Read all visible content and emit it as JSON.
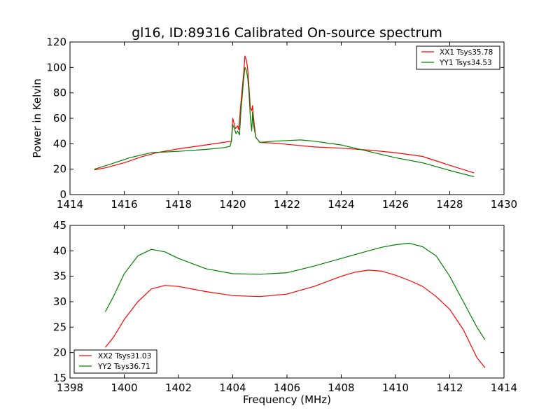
{
  "chart_data": [
    {
      "type": "line",
      "title": "gl16, ID:89316 Calibrated On-source spectrum",
      "xlabel": "",
      "ylabel": "Power in Kelvin",
      "xlim": [
        1414,
        1430
      ],
      "ylim": [
        0,
        120
      ],
      "xticks": [
        1414,
        1416,
        1418,
        1420,
        1422,
        1424,
        1426,
        1428,
        1430
      ],
      "yticks": [
        0,
        20,
        40,
        60,
        80,
        100,
        120
      ],
      "grid": false,
      "legend_position": "top-right",
      "series": [
        {
          "name": "XX1 Tsys35.78",
          "color": "#ff0000",
          "points": [
            [
              1414.9,
              19.5
            ],
            [
              1415.3,
              21
            ],
            [
              1416,
              25
            ],
            [
              1416.6,
              29.5
            ],
            [
              1417.2,
              33
            ],
            [
              1418,
              36
            ],
            [
              1419,
              39
            ],
            [
              1419.8,
              41.5
            ],
            [
              1419.95,
              42
            ],
            [
              1420.0,
              60
            ],
            [
              1420.06,
              55
            ],
            [
              1420.1,
              52
            ],
            [
              1420.18,
              54
            ],
            [
              1420.22,
              51
            ],
            [
              1420.3,
              72
            ],
            [
              1420.4,
              95
            ],
            [
              1420.45,
              109
            ],
            [
              1420.5,
              106
            ],
            [
              1420.55,
              99
            ],
            [
              1420.6,
              85
            ],
            [
              1420.65,
              68
            ],
            [
              1420.7,
              66
            ],
            [
              1420.73,
              70
            ],
            [
              1420.76,
              62
            ],
            [
              1420.85,
              45
            ],
            [
              1421.0,
              41
            ],
            [
              1421.5,
              40.5
            ],
            [
              1422,
              39.5
            ],
            [
              1423,
              37.5
            ],
            [
              1424,
              36.5
            ],
            [
              1425,
              35
            ],
            [
              1426,
              33
            ],
            [
              1427,
              30
            ],
            [
              1428,
              23
            ],
            [
              1428.9,
              17
            ]
          ]
        },
        {
          "name": "YY1 Tsys34.53",
          "color": "#008000",
          "points": [
            [
              1414.9,
              20
            ],
            [
              1415.5,
              24
            ],
            [
              1416.2,
              29
            ],
            [
              1417,
              33
            ],
            [
              1418,
              34
            ],
            [
              1419,
              35.5
            ],
            [
              1419.7,
              37
            ],
            [
              1419.9,
              38
            ],
            [
              1419.95,
              42
            ],
            [
              1420.0,
              55
            ],
            [
              1420.06,
              52
            ],
            [
              1420.12,
              48
            ],
            [
              1420.18,
              50
            ],
            [
              1420.25,
              47
            ],
            [
              1420.3,
              65
            ],
            [
              1420.4,
              90
            ],
            [
              1420.45,
              100
            ],
            [
              1420.5,
              98
            ],
            [
              1420.55,
              92
            ],
            [
              1420.6,
              80
            ],
            [
              1420.65,
              60
            ],
            [
              1420.7,
              50
            ],
            [
              1420.73,
              65
            ],
            [
              1420.76,
              56
            ],
            [
              1420.85,
              45
            ],
            [
              1421.0,
              41
            ],
            [
              1421.5,
              42
            ],
            [
              1422,
              42.5
            ],
            [
              1422.5,
              43
            ],
            [
              1423,
              42
            ],
            [
              1424,
              39
            ],
            [
              1425,
              34
            ],
            [
              1426,
              29
            ],
            [
              1427,
              25
            ],
            [
              1428,
              19
            ],
            [
              1428.9,
              14
            ]
          ]
        }
      ]
    },
    {
      "type": "line",
      "title": "",
      "xlabel": "Frequency (MHz)",
      "ylabel": "",
      "xlim": [
        1398,
        1414
      ],
      "ylim": [
        15,
        45
      ],
      "xticks": [
        1398,
        1400,
        1402,
        1404,
        1406,
        1408,
        1410,
        1412,
        1414
      ],
      "yticks": [
        15,
        20,
        25,
        30,
        35,
        40,
        45
      ],
      "grid": false,
      "legend_position": "bottom-left",
      "series": [
        {
          "name": "XX2 Tsys31.03",
          "color": "#ff0000",
          "points": [
            [
              1399.3,
              21
            ],
            [
              1399.6,
              23
            ],
            [
              1400,
              26.5
            ],
            [
              1400.5,
              30
            ],
            [
              1401,
              32.5
            ],
            [
              1401.5,
              33.2
            ],
            [
              1402,
              33
            ],
            [
              1403,
              32
            ],
            [
              1404,
              31.2
            ],
            [
              1405,
              31
            ],
            [
              1406,
              31.5
            ],
            [
              1407,
              33
            ],
            [
              1408,
              35
            ],
            [
              1408.5,
              35.8
            ],
            [
              1409,
              36.2
            ],
            [
              1409.5,
              36
            ],
            [
              1410,
              35.2
            ],
            [
              1410.5,
              34.2
            ],
            [
              1411,
              33
            ],
            [
              1411.5,
              31
            ],
            [
              1412,
              28.5
            ],
            [
              1412.5,
              24.5
            ],
            [
              1413,
              19
            ],
            [
              1413.3,
              17
            ]
          ]
        },
        {
          "name": "YY2 Tsys36.71",
          "color": "#008000",
          "points": [
            [
              1399.3,
              28
            ],
            [
              1399.6,
              31
            ],
            [
              1400,
              35.5
            ],
            [
              1400.5,
              39
            ],
            [
              1401,
              40.3
            ],
            [
              1401.5,
              39.8
            ],
            [
              1402,
              38.5
            ],
            [
              1403,
              36.5
            ],
            [
              1404,
              35.5
            ],
            [
              1405,
              35.4
            ],
            [
              1406,
              35.7
            ],
            [
              1407,
              37
            ],
            [
              1408,
              38.5
            ],
            [
              1409,
              40
            ],
            [
              1409.5,
              40.7
            ],
            [
              1410,
              41.2
            ],
            [
              1410.5,
              41.5
            ],
            [
              1411,
              40.8
            ],
            [
              1411.5,
              39
            ],
            [
              1412,
              35
            ],
            [
              1412.5,
              30
            ],
            [
              1413,
              25
            ],
            [
              1413.3,
              22.5
            ]
          ]
        }
      ]
    }
  ]
}
